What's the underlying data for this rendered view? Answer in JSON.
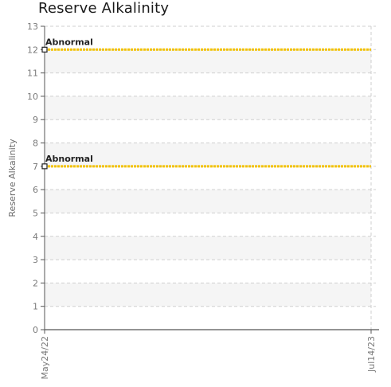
{
  "chart_data": {
    "type": "line",
    "title": "Reserve Alkalinity",
    "xlabel": "",
    "ylabel": "Reserve Alkalinity",
    "ylim": [
      0,
      13
    ],
    "yticks": [
      "0",
      "1",
      "2",
      "3",
      "4",
      "5",
      "6",
      "7",
      "8",
      "9",
      "10",
      "11",
      "12",
      "13"
    ],
    "x_ticks": [
      "May24/22",
      "Jul14/23"
    ],
    "grid": true,
    "series": [
      {
        "x": [
          "May24/22",
          "Jul14/23"
        ],
        "values": [
          12,
          12
        ],
        "color": "#f2c200",
        "annotation": "Abnormal"
      },
      {
        "x": [
          "May24/22",
          "Jul14/23"
        ],
        "values": [
          7,
          7
        ],
        "color": "#f2c200",
        "annotation": "Abnormal"
      }
    ],
    "colors": {
      "line": "#f2c200",
      "band": "#f5f5f5",
      "grid": "#cfcfcf",
      "axis": "#555555"
    }
  }
}
